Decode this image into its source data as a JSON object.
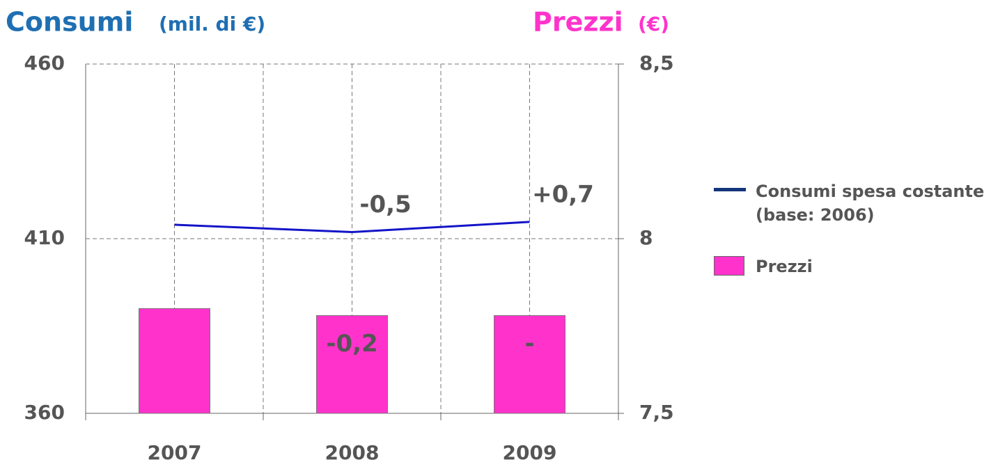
{
  "chart_data": {
    "type": "bar-line",
    "y_title": "Consumi",
    "y_unit": "(mil. di €)",
    "y2_title": "Prezzi",
    "y2_unit": "(€)",
    "categories": [
      "2007",
      "2008",
      "2009"
    ],
    "series": [
      {
        "name": "Consumi spesa costante (base: 2006)",
        "type": "line",
        "color": "#1414c8",
        "legend_color": "#14357a",
        "values": [
          414,
          411.9,
          414.8
        ],
        "change_labels": [
          null,
          "-0,5",
          "+0,7"
        ]
      },
      {
        "name": "Prezzi",
        "type": "bar",
        "axis": "y2",
        "color": "#ff33cc",
        "values": [
          7.8,
          7.78,
          7.78
        ],
        "change_labels": [
          null,
          "-0,2",
          "-"
        ]
      }
    ],
    "ylim": [
      360,
      460
    ],
    "yticks": [
      360,
      410,
      460
    ],
    "y2lim": [
      7.5,
      8.5
    ],
    "y2ticks": [
      {
        "value": 7.5,
        "label": "7,5"
      },
      8,
      {
        "value": 8.5,
        "label": "8,5"
      }
    ],
    "grid": true
  }
}
